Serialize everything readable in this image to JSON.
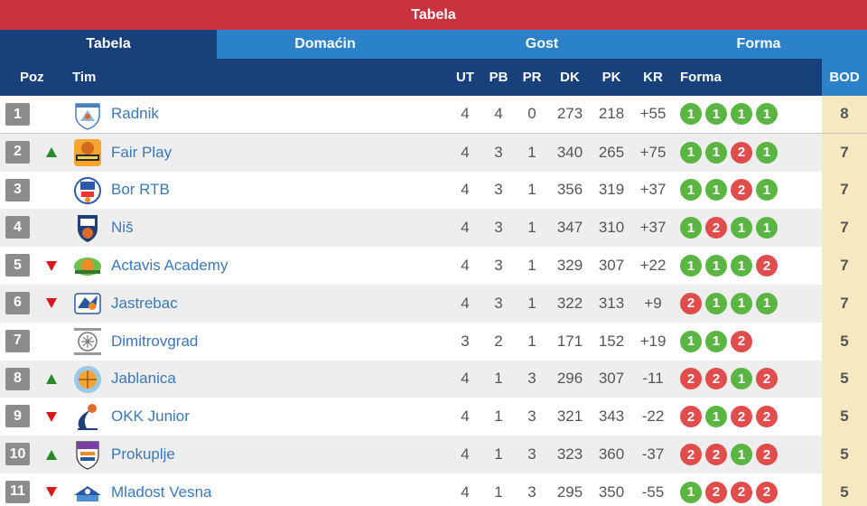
{
  "title": "Tabela",
  "tabs": [
    {
      "label": "Tabela",
      "active": true
    },
    {
      "label": "Domaćin",
      "active": false
    },
    {
      "label": "Gost",
      "active": false
    },
    {
      "label": "Forma",
      "active": false
    }
  ],
  "columns": {
    "poz": "Poz",
    "tim": "Tim",
    "ut": "UT",
    "pb": "PB",
    "pr": "PR",
    "dk": "DK",
    "pk": "PK",
    "kr": "KR",
    "forma": "Forma",
    "bod": "BOD"
  },
  "colors": {
    "win": "#5bb543",
    "loss": "#e14d4d",
    "header": "#18407a",
    "tab_inactive": "#2c82c9",
    "title_bar": "#c9323f",
    "points_bg": "#f6e8bf"
  },
  "rows": [
    {
      "pos": "1",
      "trend": "",
      "logo": "radnik-logo",
      "team": "Radnik",
      "ut": "4",
      "pb": "4",
      "pr": "0",
      "dk": "273",
      "pk": "218",
      "kr": "+55",
      "form": [
        "1",
        "1",
        "1",
        "1"
      ],
      "bod": "8"
    },
    {
      "pos": "2",
      "trend": "up",
      "logo": "fair-play-logo",
      "team": "Fair Play",
      "ut": "4",
      "pb": "3",
      "pr": "1",
      "dk": "340",
      "pk": "265",
      "kr": "+75",
      "form": [
        "1",
        "1",
        "2",
        "1"
      ],
      "bod": "7"
    },
    {
      "pos": "3",
      "trend": "",
      "logo": "bor-rtb-logo",
      "team": "Bor RTB",
      "ut": "4",
      "pb": "3",
      "pr": "1",
      "dk": "356",
      "pk": "319",
      "kr": "+37",
      "form": [
        "1",
        "1",
        "2",
        "1"
      ],
      "bod": "7"
    },
    {
      "pos": "4",
      "trend": "",
      "logo": "nis-logo",
      "team": "Niš",
      "ut": "4",
      "pb": "3",
      "pr": "1",
      "dk": "347",
      "pk": "310",
      "kr": "+37",
      "form": [
        "1",
        "2",
        "1",
        "1"
      ],
      "bod": "7"
    },
    {
      "pos": "5",
      "trend": "down",
      "logo": "actavis-academy-logo",
      "team": "Actavis Academy",
      "ut": "4",
      "pb": "3",
      "pr": "1",
      "dk": "329",
      "pk": "307",
      "kr": "+22",
      "form": [
        "1",
        "1",
        "1",
        "2"
      ],
      "bod": "7"
    },
    {
      "pos": "6",
      "trend": "down",
      "logo": "jastrebac-logo",
      "team": "Jastrebac",
      "ut": "4",
      "pb": "3",
      "pr": "1",
      "dk": "322",
      "pk": "313",
      "kr": "+9",
      "form": [
        "2",
        "1",
        "1",
        "1"
      ],
      "bod": "7"
    },
    {
      "pos": "7",
      "trend": "",
      "logo": "dimitrovgrad-logo",
      "team": "Dimitrovgrad",
      "ut": "3",
      "pb": "2",
      "pr": "1",
      "dk": "171",
      "pk": "152",
      "kr": "+19",
      "form": [
        "1",
        "1",
        "2"
      ],
      "bod": "5"
    },
    {
      "pos": "8",
      "trend": "up",
      "logo": "jablanica-logo",
      "team": "Jablanica",
      "ut": "4",
      "pb": "1",
      "pr": "3",
      "dk": "296",
      "pk": "307",
      "kr": "-11",
      "form": [
        "2",
        "2",
        "1",
        "2"
      ],
      "bod": "5"
    },
    {
      "pos": "9",
      "trend": "down",
      "logo": "okk-junior-logo",
      "team": "OKK Junior",
      "ut": "4",
      "pb": "1",
      "pr": "3",
      "dk": "321",
      "pk": "343",
      "kr": "-22",
      "form": [
        "2",
        "1",
        "2",
        "2"
      ],
      "bod": "5"
    },
    {
      "pos": "10",
      "trend": "up",
      "logo": "prokuplje-logo",
      "team": "Prokuplje",
      "ut": "4",
      "pb": "1",
      "pr": "3",
      "dk": "323",
      "pk": "360",
      "kr": "-37",
      "form": [
        "2",
        "2",
        "1",
        "2"
      ],
      "bod": "5"
    },
    {
      "pos": "11",
      "trend": "down",
      "logo": "mladost-vesna-logo",
      "team": "Mladost Vesna",
      "ut": "4",
      "pb": "1",
      "pr": "3",
      "dk": "295",
      "pk": "350",
      "kr": "-55",
      "form": [
        "1",
        "2",
        "2",
        "2"
      ],
      "bod": "5"
    }
  ]
}
